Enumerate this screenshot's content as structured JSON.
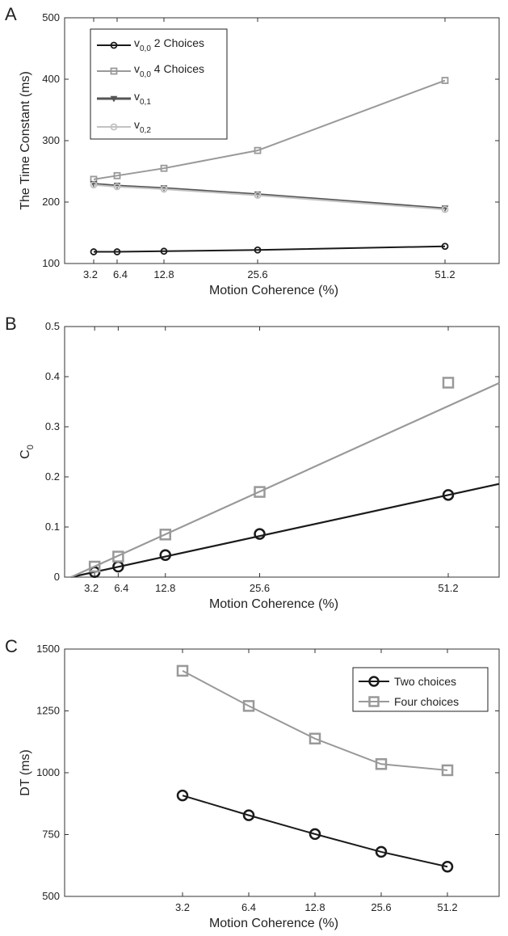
{
  "chart_data": [
    {
      "panel": "A",
      "type": "line",
      "xlabel": "Motion Coherence (%)",
      "ylabel": "The Time Constant (ms)",
      "xticks": [
        "3.2",
        "6.4",
        "12.8",
        "25.6",
        "51.2"
      ],
      "ylim": [
        100,
        500
      ],
      "yticks": [
        "100",
        "200",
        "300",
        "400",
        "500"
      ],
      "legend_position": "top-left",
      "series": [
        {
          "name": "v0,0 2 Choices",
          "legend_main": "v",
          "legend_sub": "0,0",
          "legend_suffix": " 2 Choices",
          "color": "#1a1a1a",
          "marker": "circle",
          "x": [
            3.2,
            6.4,
            12.8,
            25.6,
            51.2
          ],
          "y": [
            119,
            119,
            120,
            122,
            128
          ]
        },
        {
          "name": "v0,0 4 Choices",
          "legend_main": "v",
          "legend_sub": "0,0",
          "legend_suffix": " 4 Choices",
          "color": "#999999",
          "marker": "square",
          "x": [
            3.2,
            6.4,
            12.8,
            25.6,
            51.2
          ],
          "y": [
            237,
            243,
            255,
            284,
            398
          ]
        },
        {
          "name": "v0,1",
          "legend_main": "v",
          "legend_sub": "0,1",
          "legend_suffix": "",
          "color": "#555555",
          "marker": "triangle-down",
          "x": [
            3.2,
            6.4,
            12.8,
            25.6,
            51.2
          ],
          "y": [
            230,
            227,
            223,
            213,
            190
          ]
        },
        {
          "name": "v0,2",
          "legend_main": "v",
          "legend_sub": "0,2",
          "legend_suffix": "",
          "color": "#c2c2c2",
          "marker": "circle",
          "x": [
            3.2,
            6.4,
            12.8,
            25.6,
            51.2
          ],
          "y": [
            228,
            225,
            221,
            211,
            188
          ]
        }
      ]
    },
    {
      "panel": "B",
      "type": "scatter",
      "xlabel": "Motion Coherence (%)",
      "ylabel": "C",
      "ylabel_sub": "0",
      "xticks": [
        "3.2",
        "6.4",
        "12.8",
        "25.6",
        "51.2"
      ],
      "ylim": [
        0,
        0.5
      ],
      "yticks": [
        "0",
        "0.1",
        "0.2",
        "0.3",
        "0.4",
        "0.5"
      ],
      "series": [
        {
          "name": "2 choices",
          "color": "#1a1a1a",
          "marker": "circle",
          "x": [
            3.2,
            6.4,
            12.8,
            25.6,
            51.2
          ],
          "y": [
            0.01,
            0.021,
            0.044,
            0.086,
            0.164
          ],
          "fit_line": {
            "x": [
              0,
              60
            ],
            "y": [
              0,
              0.192
            ]
          }
        },
        {
          "name": "4 choices",
          "color": "#999999",
          "marker": "square",
          "x": [
            3.2,
            6.4,
            12.8,
            25.6,
            51.2
          ],
          "y": [
            0.021,
            0.041,
            0.085,
            0.17,
            0.388
          ],
          "fit_line": {
            "x": [
              0,
              60
            ],
            "y": [
              0,
              0.4
            ]
          }
        }
      ]
    },
    {
      "panel": "C",
      "type": "line",
      "xlabel": "Motion Coherence (%)",
      "ylabel": "DT (ms)",
      "xscale": "log",
      "xticks": [
        "3.2",
        "6.4",
        "12.8",
        "25.6",
        "51.2"
      ],
      "ylim": [
        500,
        1500
      ],
      "yticks": [
        "500",
        "750",
        "1000",
        "1250",
        "1500"
      ],
      "legend_position": "top-right",
      "series": [
        {
          "name": "Two choices",
          "color": "#1a1a1a",
          "marker": "circle",
          "x": [
            3.2,
            6.4,
            12.8,
            25.6,
            51.2
          ],
          "y": [
            908,
            828,
            752,
            680,
            620
          ]
        },
        {
          "name": "Four choices",
          "color": "#999999",
          "marker": "square",
          "x": [
            3.2,
            6.4,
            12.8,
            25.6,
            51.2
          ],
          "y": [
            1412,
            1270,
            1138,
            1035,
            1010
          ]
        }
      ]
    }
  ]
}
